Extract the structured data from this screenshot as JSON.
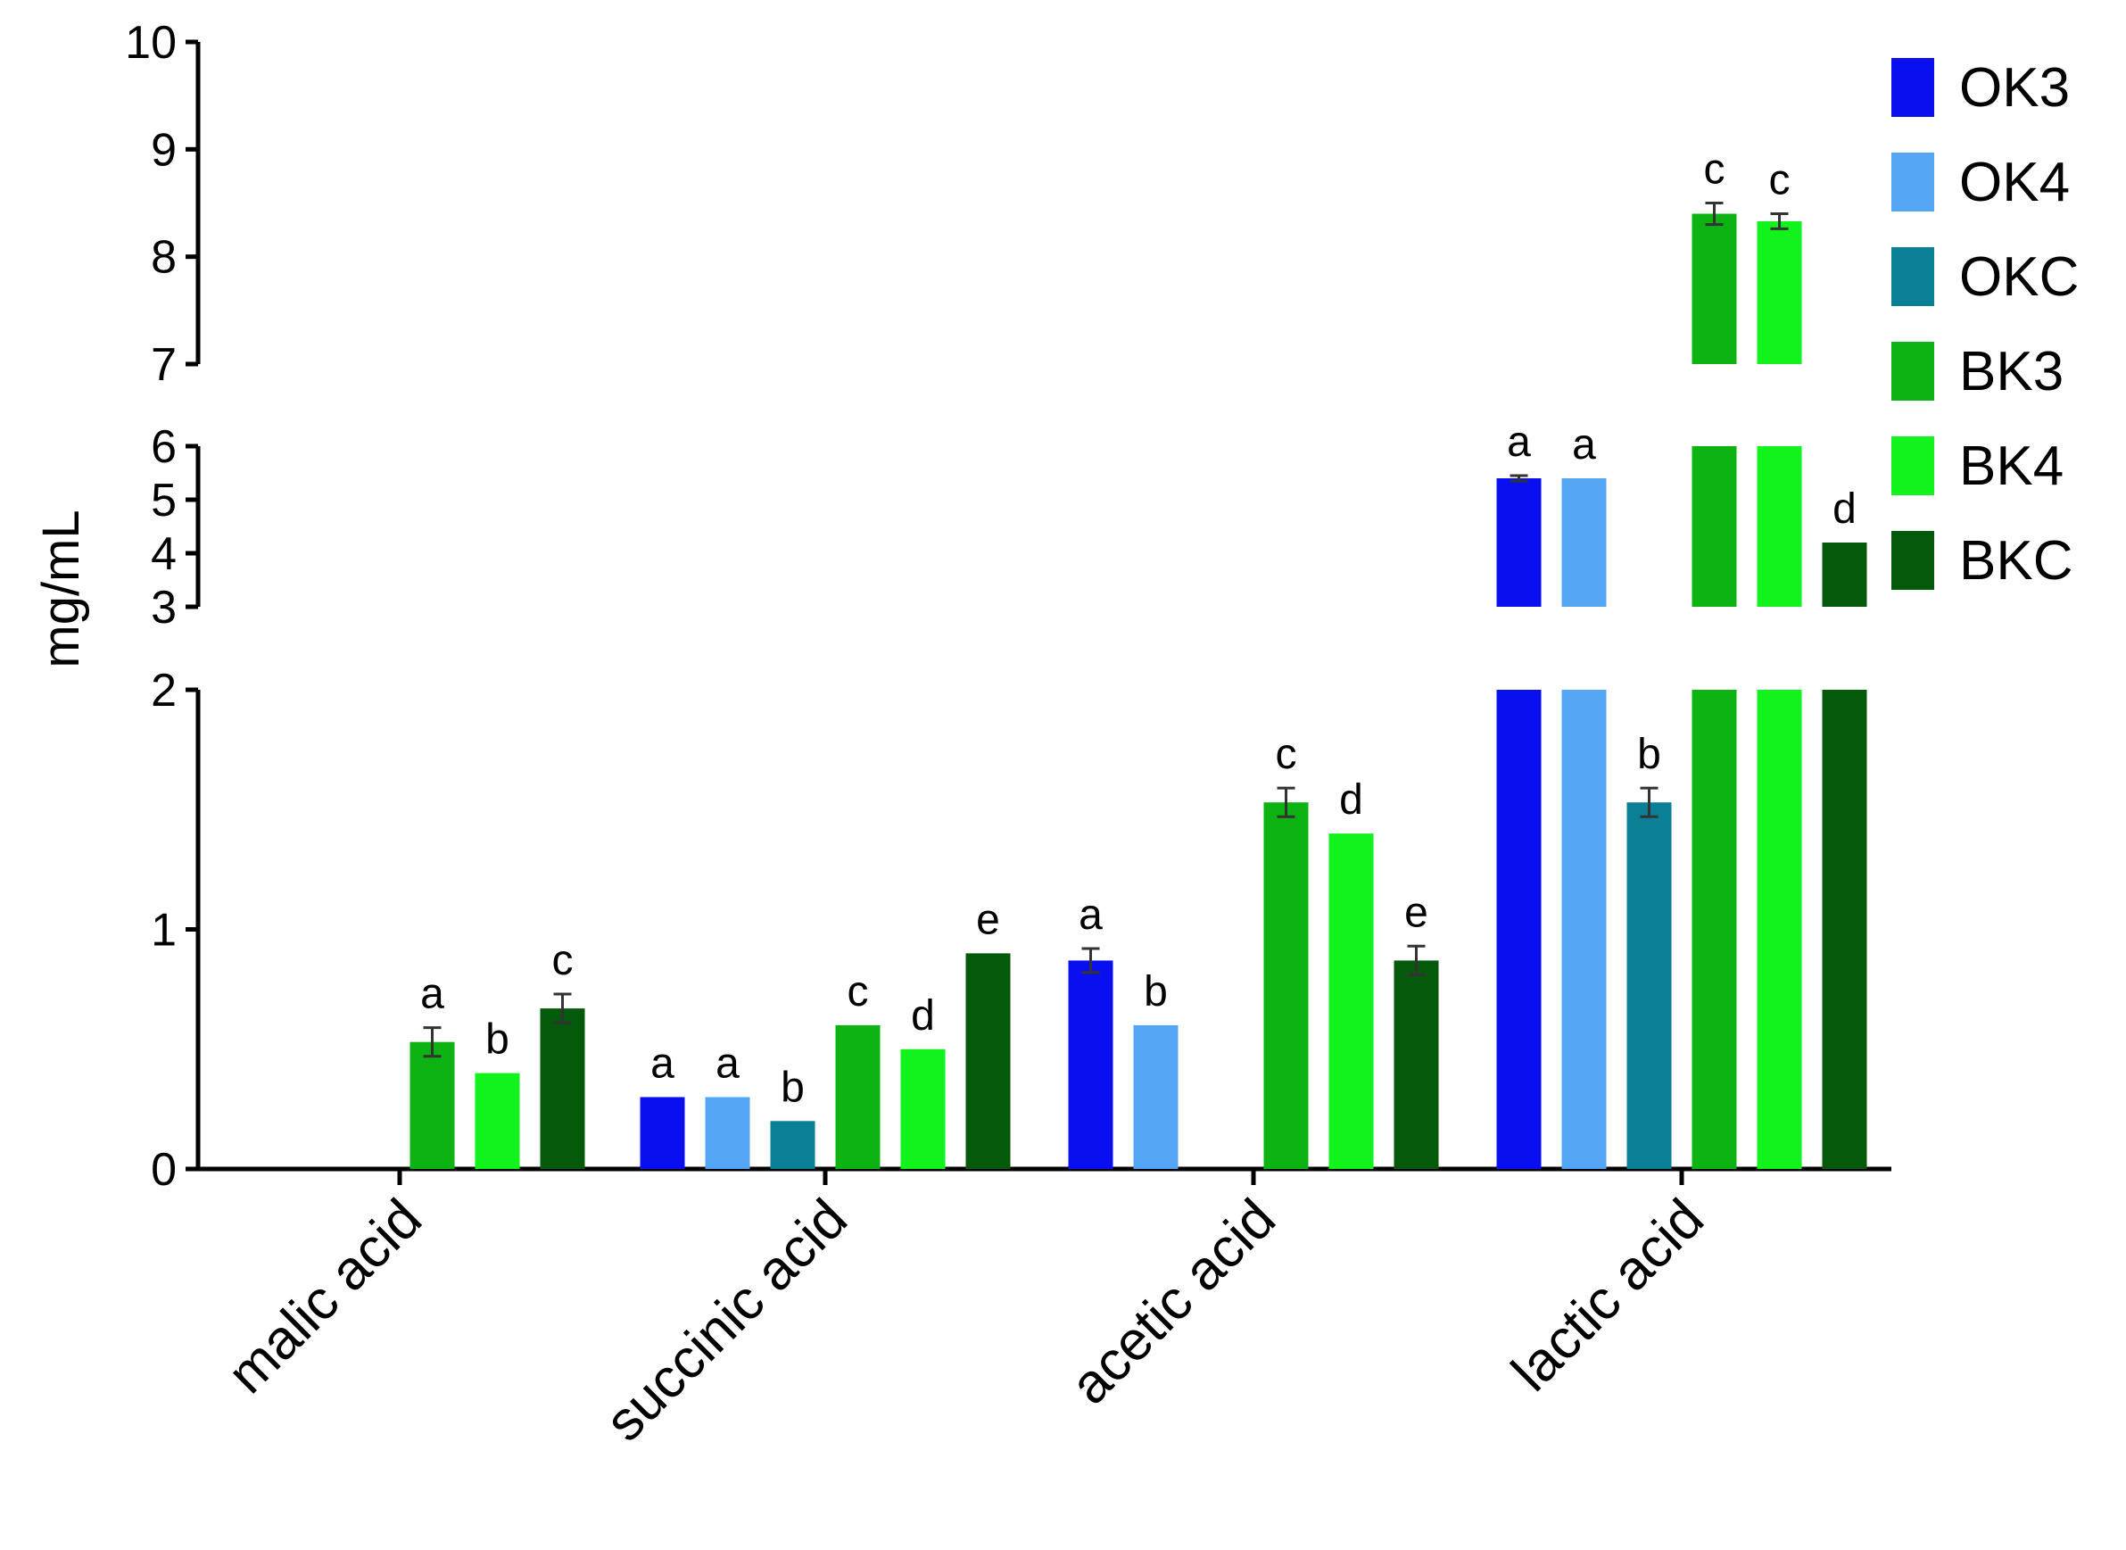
{
  "chart_data": {
    "type": "bar",
    "ylabel": "mg/mL",
    "categories": [
      "malic acid",
      "succinic acid",
      "acetic acid",
      "lactic acid"
    ],
    "y_segments": [
      {
        "range": [
          0,
          2
        ],
        "ticks": [
          "0",
          "1",
          "2"
        ]
      },
      {
        "range": [
          3,
          6
        ],
        "ticks": [
          "3",
          "4",
          "5",
          "6"
        ]
      },
      {
        "range": [
          7,
          10
        ],
        "ticks": [
          "7",
          "8",
          "9",
          "10"
        ]
      }
    ],
    "legend_position": "top-right",
    "series": [
      {
        "name": "OK3",
        "color": "#0a0ff0",
        "values": [
          null,
          0.3,
          0.87,
          5.4
        ],
        "errors": [
          null,
          0,
          0.05,
          0.05
        ],
        "letters": [
          "",
          "a",
          "a",
          "a"
        ]
      },
      {
        "name": "OK4",
        "color": "#55a5f5",
        "values": [
          null,
          0.3,
          0.6,
          5.4
        ],
        "errors": [
          null,
          0,
          0,
          0
        ],
        "letters": [
          "",
          "a",
          "b",
          "a"
        ]
      },
      {
        "name": "OKC",
        "color": "#0b7f96",
        "values": [
          null,
          0.2,
          null,
          1.53
        ],
        "errors": [
          null,
          0,
          null,
          0.06
        ],
        "letters": [
          "",
          "b",
          "",
          "b"
        ]
      },
      {
        "name": "BK3",
        "color": "#0db312",
        "values": [
          0.53,
          0.6,
          1.53,
          8.4
        ],
        "errors": [
          0.06,
          0,
          0.06,
          0.1
        ],
        "letters": [
          "a",
          "c",
          "c",
          "c"
        ]
      },
      {
        "name": "BK4",
        "color": "#12f21c",
        "values": [
          0.4,
          0.5,
          1.4,
          8.33
        ],
        "errors": [
          0,
          0,
          0,
          0.07
        ],
        "letters": [
          "b",
          "d",
          "d",
          "c"
        ]
      },
      {
        "name": "BKC",
        "color": "#045a0a",
        "values": [
          0.67,
          0.9,
          0.87,
          4.2
        ],
        "errors": [
          0.06,
          0,
          0.06,
          0
        ],
        "letters": [
          "c",
          "e",
          "e",
          "d"
        ]
      }
    ]
  }
}
